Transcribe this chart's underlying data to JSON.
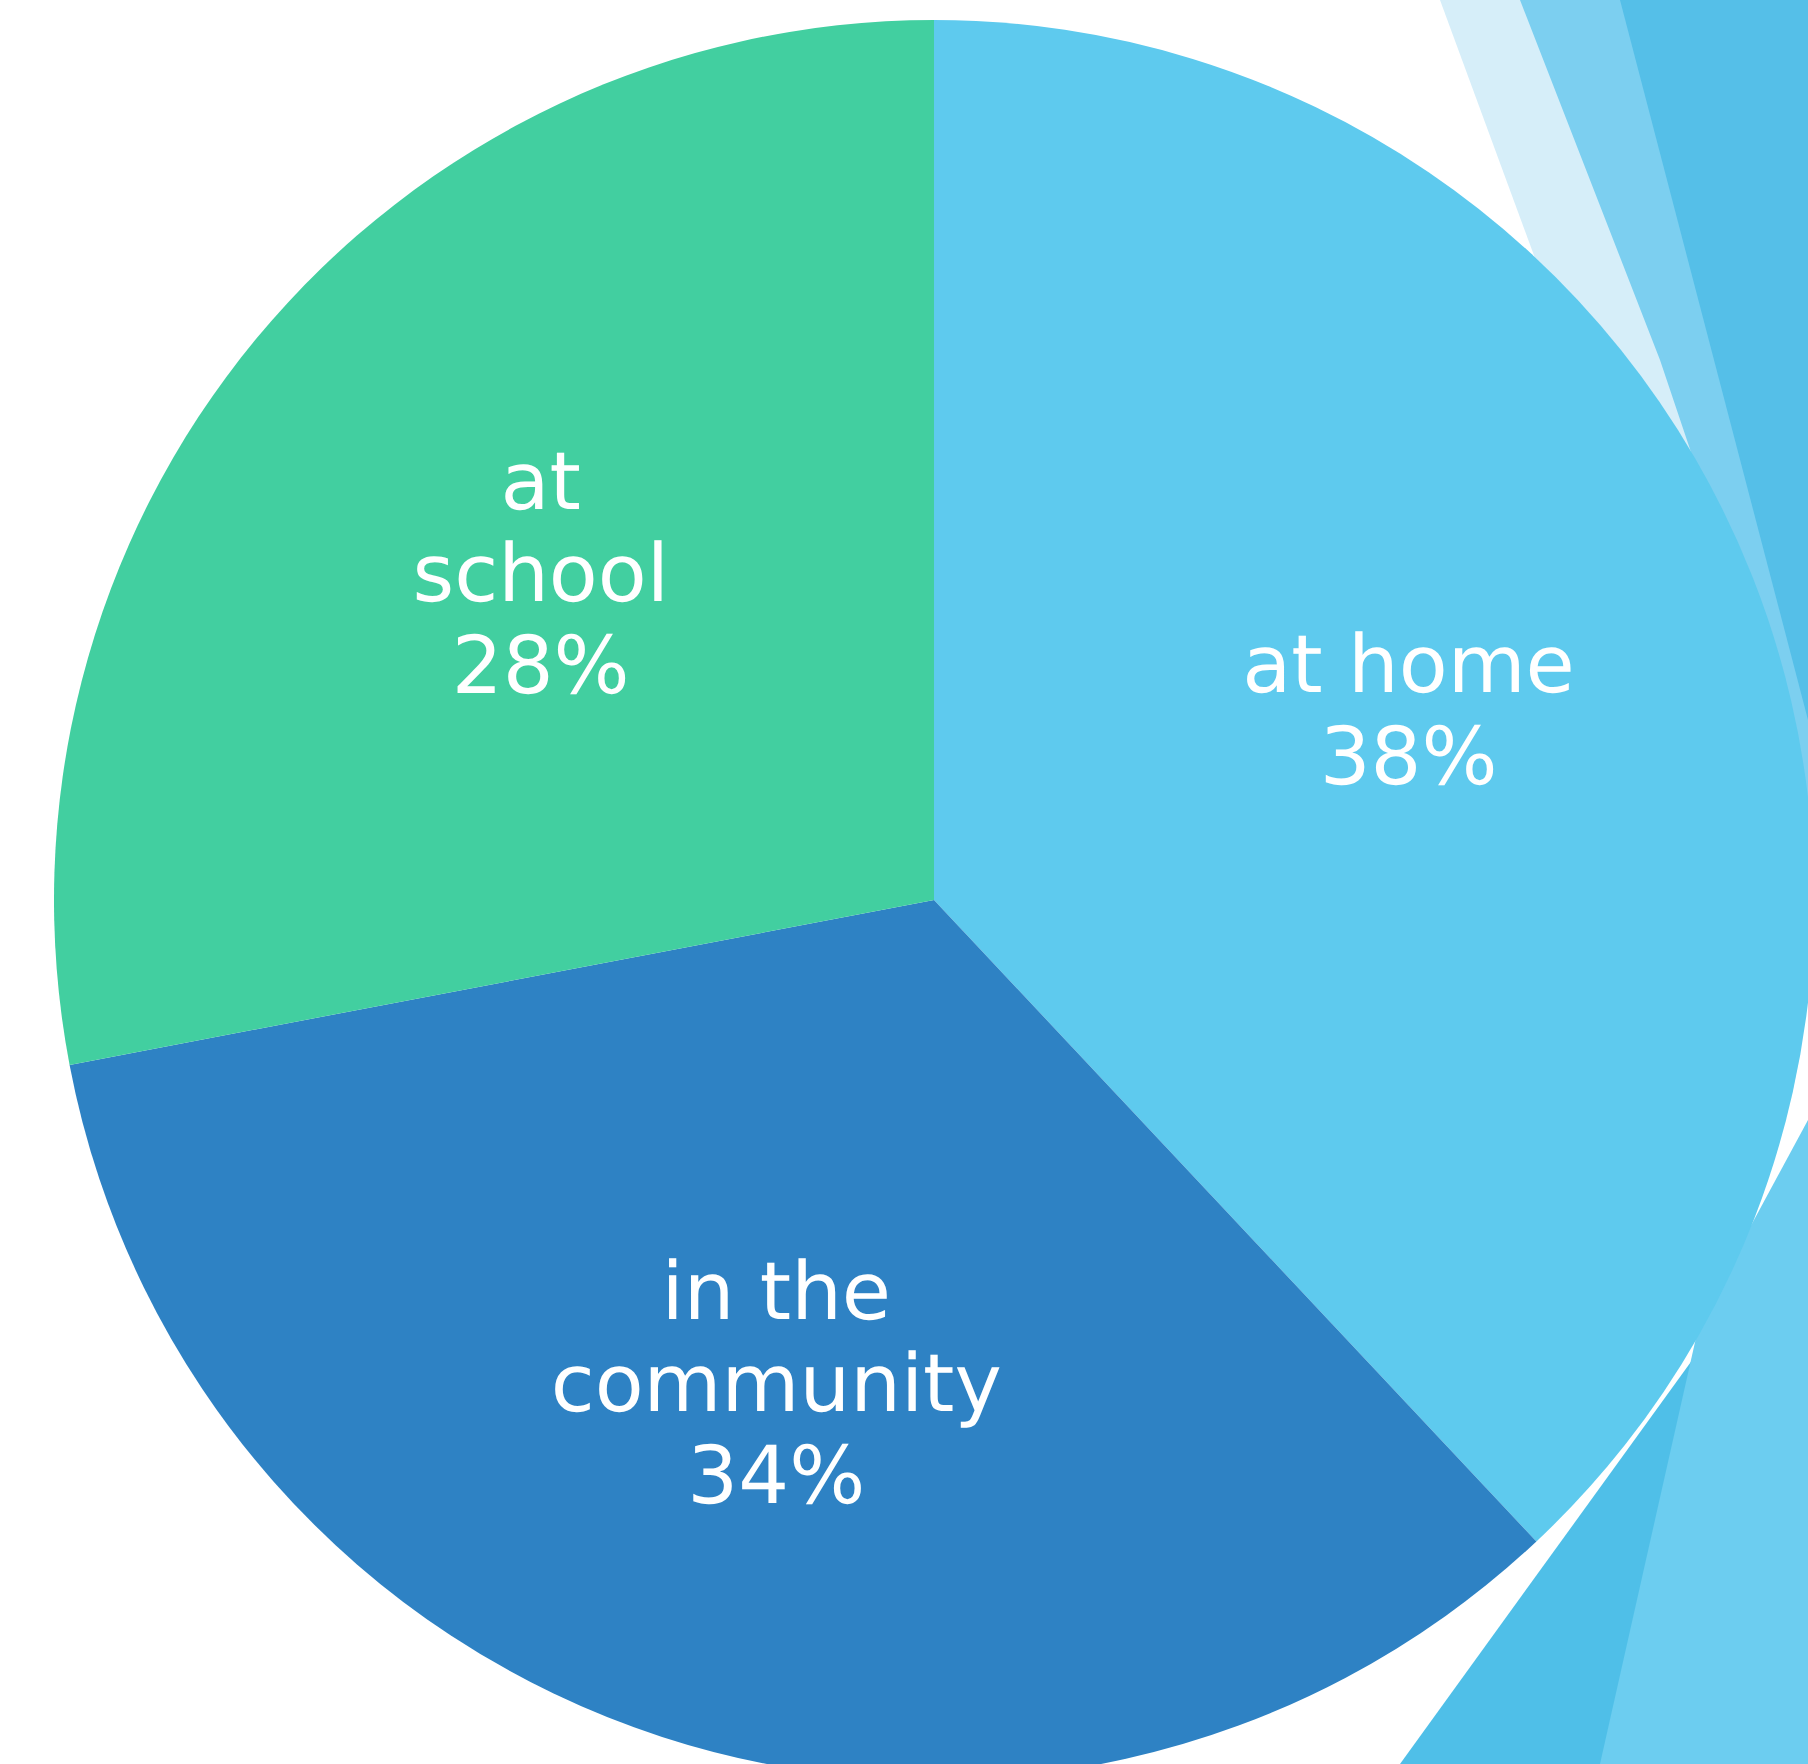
{
  "chart_data": {
    "type": "pie",
    "categories": [
      "at home",
      "in the community",
      "at school"
    ],
    "values": [
      38,
      34,
      28
    ],
    "value_labels": [
      "38%",
      "34%",
      "28%"
    ],
    "colors": [
      "#5ecaee",
      "#2e82c4",
      "#42cfa0"
    ],
    "legend": false
  }
}
